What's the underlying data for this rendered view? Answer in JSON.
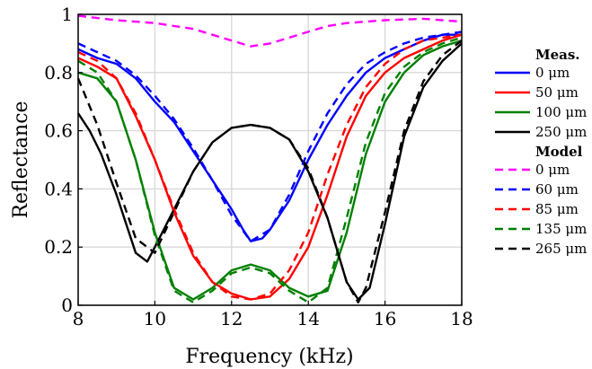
{
  "chart_data": {
    "type": "line",
    "title": "",
    "xlabel": "Frequency (kHz)",
    "ylabel": "Reflectance",
    "xlim": [
      8,
      18
    ],
    "ylim": [
      0,
      1
    ],
    "xticks": [
      8,
      10,
      12,
      14,
      16,
      18
    ],
    "yticks": [
      0,
      0.2,
      0.4,
      0.6,
      0.8,
      1
    ],
    "xtick_labels": [
      "8",
      "10",
      "12",
      "14",
      "16",
      "18"
    ],
    "ytick_labels": [
      "0",
      "0.2",
      "0.4",
      "0.6",
      "0.8",
      "1"
    ],
    "grid": true,
    "legend_position": "right",
    "legend_groups": [
      {
        "title": "Meas.",
        "entries": [
          {
            "label": "0 μm",
            "series": "meas_0"
          },
          {
            "label": "50 μm",
            "series": "meas_50"
          },
          {
            "label": "100 μm",
            "series": "meas_100"
          },
          {
            "label": "250 μm",
            "series": "meas_250"
          }
        ]
      },
      {
        "title": "Model",
        "entries": [
          {
            "label": "0 μm",
            "series": "model_0"
          },
          {
            "label": "60 μm",
            "series": "model_60"
          },
          {
            "label": "85 μm",
            "series": "model_85"
          },
          {
            "label": "135 μm",
            "series": "model_135"
          },
          {
            "label": "265 μm",
            "series": "model_265"
          }
        ]
      }
    ],
    "series": [
      {
        "id": "meas_0",
        "color": "#0000ff",
        "dash": "solid",
        "x": [
          8,
          8.5,
          9,
          9.5,
          10,
          10.5,
          11,
          11.5,
          12,
          12.3,
          12.5,
          12.8,
          13,
          13.5,
          14,
          14.5,
          15,
          15.5,
          16,
          16.5,
          17,
          17.5,
          18
        ],
        "y": [
          0.88,
          0.85,
          0.83,
          0.78,
          0.7,
          0.63,
          0.53,
          0.43,
          0.33,
          0.26,
          0.22,
          0.23,
          0.26,
          0.36,
          0.5,
          0.62,
          0.72,
          0.8,
          0.85,
          0.88,
          0.91,
          0.93,
          0.93
        ]
      },
      {
        "id": "meas_50",
        "color": "#ff0000",
        "dash": "solid",
        "x": [
          8,
          8.5,
          9,
          9.5,
          10,
          10.5,
          11,
          11.5,
          12,
          12.5,
          13,
          13.5,
          14,
          14.5,
          15,
          15.5,
          16,
          16.5,
          17,
          17.5,
          18
        ],
        "y": [
          0.85,
          0.82,
          0.78,
          0.65,
          0.5,
          0.32,
          0.17,
          0.08,
          0.04,
          0.02,
          0.03,
          0.09,
          0.2,
          0.38,
          0.58,
          0.72,
          0.8,
          0.85,
          0.88,
          0.91,
          0.93
        ]
      },
      {
        "id": "meas_100",
        "color": "#008000",
        "dash": "solid",
        "x": [
          8,
          8.5,
          9,
          9.5,
          10,
          10.5,
          11,
          11.5,
          12,
          12.5,
          13,
          13.5,
          14,
          14.5,
          15,
          15.5,
          16,
          16.5,
          17,
          17.5,
          18
        ],
        "y": [
          0.8,
          0.78,
          0.7,
          0.5,
          0.25,
          0.06,
          0.02,
          0.06,
          0.12,
          0.14,
          0.12,
          0.06,
          0.03,
          0.05,
          0.25,
          0.52,
          0.7,
          0.8,
          0.86,
          0.89,
          0.91
        ]
      },
      {
        "id": "meas_250",
        "color": "#000000",
        "dash": "solid",
        "x": [
          8,
          8.3,
          8.6,
          9,
          9.5,
          9.8,
          10,
          10.5,
          11,
          11.5,
          12,
          12.5,
          13,
          13.5,
          14,
          14.5,
          15,
          15.3,
          15.6,
          16,
          16.5,
          17,
          17.5,
          18
        ],
        "y": [
          0.66,
          0.6,
          0.52,
          0.38,
          0.18,
          0.15,
          0.2,
          0.33,
          0.46,
          0.56,
          0.61,
          0.62,
          0.61,
          0.57,
          0.46,
          0.3,
          0.08,
          0.02,
          0.06,
          0.28,
          0.58,
          0.75,
          0.84,
          0.9
        ]
      },
      {
        "id": "model_0",
        "color": "#ff00ff",
        "dash": "dashed",
        "x": [
          8,
          9,
          10,
          10.5,
          11,
          11.5,
          12,
          12.5,
          13,
          13.5,
          14,
          14.5,
          15,
          16,
          17,
          18
        ],
        "y": [
          0.995,
          0.98,
          0.97,
          0.96,
          0.95,
          0.93,
          0.91,
          0.89,
          0.9,
          0.92,
          0.94,
          0.96,
          0.97,
          0.98,
          0.985,
          0.975
        ]
      },
      {
        "id": "model_60",
        "color": "#0000ff",
        "dash": "dashed",
        "x": [
          8,
          8.5,
          9,
          9.5,
          10,
          10.5,
          11,
          11.5,
          12,
          12.5,
          13,
          13.5,
          14,
          14.5,
          15,
          15.5,
          16,
          16.5,
          17,
          17.5,
          18
        ],
        "y": [
          0.9,
          0.87,
          0.84,
          0.79,
          0.72,
          0.64,
          0.54,
          0.43,
          0.31,
          0.22,
          0.26,
          0.38,
          0.53,
          0.66,
          0.76,
          0.83,
          0.87,
          0.9,
          0.92,
          0.93,
          0.94
        ]
      },
      {
        "id": "model_85",
        "color": "#ff0000",
        "dash": "dashed",
        "x": [
          8,
          8.5,
          9,
          9.5,
          10,
          10.5,
          11,
          11.5,
          12,
          12.5,
          13,
          13.5,
          14,
          14.5,
          15,
          15.5,
          16,
          16.5,
          17,
          17.5,
          18
        ],
        "y": [
          0.87,
          0.84,
          0.78,
          0.66,
          0.5,
          0.33,
          0.18,
          0.08,
          0.03,
          0.02,
          0.04,
          0.12,
          0.25,
          0.45,
          0.62,
          0.75,
          0.83,
          0.88,
          0.91,
          0.92,
          0.93
        ]
      },
      {
        "id": "model_135",
        "color": "#008000",
        "dash": "dashed",
        "x": [
          8,
          8.5,
          9,
          9.5,
          10,
          10.5,
          11,
          11.5,
          12,
          12.5,
          13,
          13.5,
          14,
          14.5,
          15,
          15.5,
          16,
          16.5,
          17,
          17.5,
          18
        ],
        "y": [
          0.84,
          0.8,
          0.7,
          0.5,
          0.24,
          0.05,
          0.01,
          0.05,
          0.11,
          0.13,
          0.11,
          0.05,
          0.01,
          0.06,
          0.3,
          0.56,
          0.73,
          0.82,
          0.87,
          0.9,
          0.92
        ]
      },
      {
        "id": "model_265",
        "color": "#000000",
        "dash": "dashed",
        "x": [
          8,
          8.5,
          9,
          9.5,
          10,
          10.5,
          11,
          11.5,
          12,
          12.5,
          13,
          13.5,
          14,
          14.5,
          15,
          15.3,
          15.5,
          16,
          16.5,
          17,
          17.5,
          18
        ],
        "y": [
          0.78,
          0.62,
          0.42,
          0.23,
          0.18,
          0.32,
          0.46,
          0.56,
          0.61,
          0.62,
          0.61,
          0.57,
          0.47,
          0.3,
          0.08,
          0.01,
          0.06,
          0.32,
          0.6,
          0.77,
          0.86,
          0.91
        ]
      }
    ]
  }
}
